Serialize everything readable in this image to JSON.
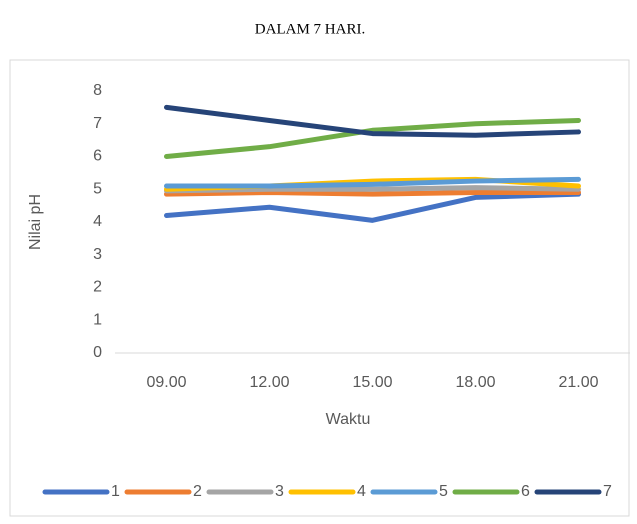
{
  "title": "DALAM 7 HARI.",
  "chart_data": {
    "type": "line",
    "x_label": "Waktu",
    "y_label": "Nilai pH",
    "categories": [
      "09.00",
      "12.00",
      "15.00",
      "18.00",
      "21.00"
    ],
    "series": [
      {
        "name": "1",
        "color": "#4472c4",
        "values": [
          4.2,
          4.45,
          4.05,
          4.75,
          4.85
        ]
      },
      {
        "name": "2",
        "color": "#ed7d31",
        "values": [
          4.85,
          4.9,
          4.85,
          4.9,
          4.9
        ]
      },
      {
        "name": "3",
        "color": "#a5a5a5",
        "values": [
          4.95,
          5.0,
          5.0,
          5.05,
          5.0
        ]
      },
      {
        "name": "4",
        "color": "#ffc000",
        "values": [
          5.0,
          5.1,
          5.25,
          5.3,
          5.1
        ]
      },
      {
        "name": "5",
        "color": "#5b9bd5",
        "values": [
          5.1,
          5.1,
          5.15,
          5.25,
          5.3
        ]
      },
      {
        "name": "6",
        "color": "#70ad47",
        "values": [
          6.0,
          6.3,
          6.8,
          7.0,
          7.1
        ]
      },
      {
        "name": "7",
        "color": "#264478",
        "values": [
          7.5,
          7.1,
          6.7,
          6.65,
          6.75
        ]
      }
    ],
    "ylim": [
      0,
      8
    ],
    "yticks": [
      0,
      1,
      2,
      3,
      4,
      5,
      6,
      7,
      8
    ],
    "grid": false,
    "legend": "bottom"
  }
}
